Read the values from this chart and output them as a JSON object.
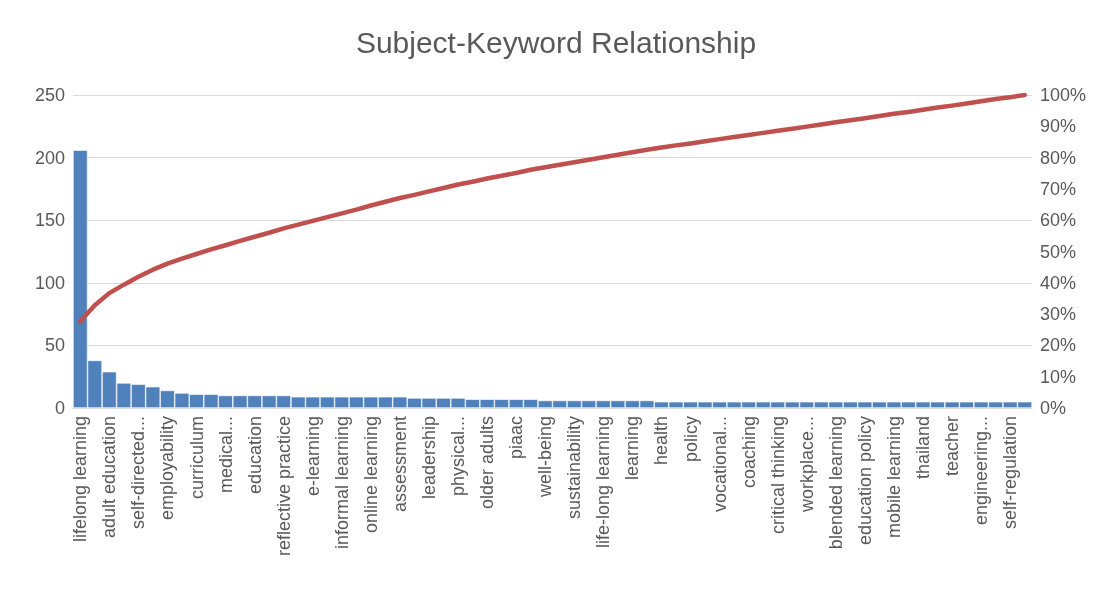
{
  "chart_data": {
    "type": "bar",
    "title": "Subject-Keyword Relationship",
    "categories": [
      "lifelong learning",
      null,
      "adult education",
      null,
      "self-directed...",
      null,
      "employability",
      null,
      "curriculum",
      null,
      "medical...",
      null,
      "education",
      null,
      "reflective practice",
      null,
      "e-learning",
      null,
      "informal learning",
      null,
      "online learning",
      null,
      "assessment",
      null,
      "leadership",
      null,
      "physical...",
      null,
      "older adults",
      null,
      "piaac",
      null,
      "well-being",
      null,
      "sustainability",
      null,
      "life-long learning",
      null,
      "learning",
      null,
      "health",
      null,
      "policy",
      null,
      "vocational...",
      null,
      "coaching",
      null,
      "critical thinking",
      null,
      "workplace...",
      null,
      "blended learning",
      null,
      "education policy",
      null,
      "mobile learning",
      null,
      "thailand",
      null,
      "teacher",
      null,
      "engineering...",
      null,
      "self-regulation",
      null
    ],
    "series": [
      {
        "color": "#4f81bd",
        "values": [
          206,
          38,
          29,
          20,
          19,
          17,
          14,
          12,
          11,
          11,
          10,
          10,
          10,
          10,
          10,
          9,
          9,
          9,
          9,
          9,
          9,
          9,
          9,
          8,
          8,
          8,
          8,
          7,
          7,
          7,
          7,
          7,
          6,
          6,
          6,
          6,
          6,
          6,
          6,
          6,
          5,
          5,
          5,
          5,
          5,
          5,
          5,
          5,
          5,
          5,
          5,
          5,
          5,
          5,
          5,
          5,
          5,
          5,
          5,
          5,
          5,
          5,
          5,
          5,
          5,
          5
        ]
      },
      {
        "type": "line",
        "axis": "y2",
        "color": "#c0504d",
        "values": [
          27.7,
          32.8,
          36.7,
          39.4,
          41.9,
          44.2,
          46.1,
          47.7,
          49.2,
          50.7,
          52.0,
          53.4,
          54.7,
          56.0,
          57.4,
          58.6,
          59.8,
          61.0,
          62.2,
          63.4,
          64.7,
          65.9,
          67.1,
          68.1,
          69.2,
          70.3,
          71.4,
          72.3,
          73.3,
          74.2,
          75.1,
          76.1,
          76.9,
          77.7,
          78.5,
          79.3,
          80.1,
          80.9,
          81.7,
          82.5,
          83.2,
          83.9,
          84.5,
          85.2,
          85.9,
          86.6,
          87.2,
          87.9,
          88.6,
          89.2,
          89.9,
          90.6,
          91.3,
          91.9,
          92.6,
          93.3,
          94.0,
          94.6,
          95.3,
          96.0,
          96.6,
          97.3,
          98.0,
          98.7,
          99.3,
          100
        ]
      }
    ],
    "ylim": [
      0,
      250
    ],
    "yticks": [
      0,
      50,
      100,
      150,
      200,
      250
    ],
    "y2lim": [
      0,
      100
    ],
    "y2ticks": [
      {
        "value": 0,
        "label": "0%"
      },
      {
        "value": 10,
        "label": "10%"
      },
      {
        "value": 20,
        "label": "20%"
      },
      {
        "value": 30,
        "label": "30%"
      },
      {
        "value": 40,
        "label": "40%"
      },
      {
        "value": 50,
        "label": "50%"
      },
      {
        "value": 60,
        "label": "60%"
      },
      {
        "value": 70,
        "label": "70%"
      },
      {
        "value": 80,
        "label": "80%"
      },
      {
        "value": 90,
        "label": "90%"
      },
      {
        "value": 100,
        "label": "100%"
      }
    ],
    "grid": "y",
    "marker": "none",
    "line_style": "solid"
  }
}
